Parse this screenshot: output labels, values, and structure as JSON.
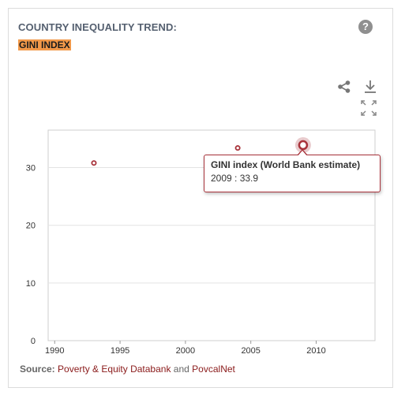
{
  "header": {
    "title": "COUNTRY INEQUALITY TREND:",
    "subtitle": "GINI INDEX",
    "help_glyph": "?"
  },
  "toolbar": {
    "icons": [
      "share-icon",
      "download-icon",
      "fullscreen-icon"
    ]
  },
  "tooltip": {
    "series_name": "GINI index (World Bank estimate)",
    "value_text": "2009 : 33.9"
  },
  "source": {
    "label": "Source:",
    "link1": "Poverty & Equity Databank",
    "conjunction": "and",
    "link2": "PovcalNet"
  },
  "colors": {
    "marker": "#a8323a",
    "subtitle_highlight": "#f2994a",
    "title": "#556070",
    "link": "#8a1a1a"
  },
  "chart_data": {
    "type": "scatter",
    "series": [
      {
        "name": "GINI index (World Bank estimate)",
        "x": [
          1993,
          2004,
          2009
        ],
        "y": [
          30.8,
          33.4,
          33.9
        ]
      }
    ],
    "xlim": [
      1989.5,
      2014.5
    ],
    "ylim": [
      0,
      36.5
    ],
    "xticks": [
      1990,
      1995,
      2000,
      2005,
      2010
    ],
    "yticks": [
      0,
      10,
      20,
      30
    ],
    "highlighted_point": {
      "x": 2009,
      "y": 33.9
    },
    "grid": "horizontal"
  }
}
